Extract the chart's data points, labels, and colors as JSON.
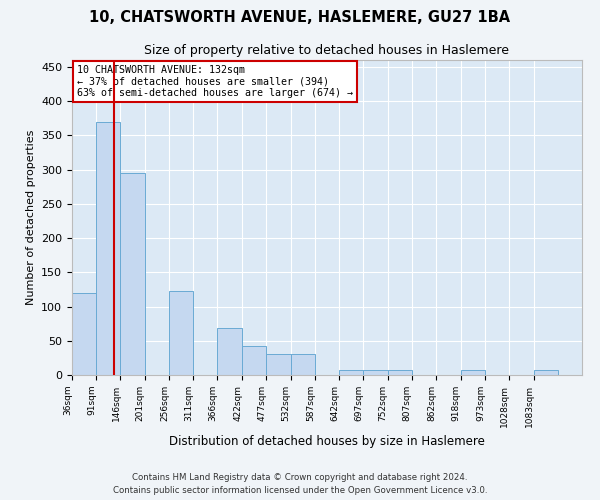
{
  "title": "10, CHATSWORTH AVENUE, HASLEMERE, GU27 1BA",
  "subtitle": "Size of property relative to detached houses in Haslemere",
  "xlabel": "Distribution of detached houses by size in Haslemere",
  "ylabel": "Number of detached properties",
  "bar_color": "#c5d8f0",
  "bar_edge_color": "#6aaad4",
  "background_color": "#dce9f5",
  "grid_color": "#ffffff",
  "annotation_box_color": "#ffffff",
  "annotation_box_edge": "#cc0000",
  "property_line_color": "#cc0000",
  "property_size": 132,
  "annotation_line1": "10 CHATSWORTH AVENUE: 132sqm",
  "annotation_line2": "← 37% of detached houses are smaller (394)",
  "annotation_line3": "63% of semi-detached houses are larger (674) →",
  "footer_line1": "Contains HM Land Registry data © Crown copyright and database right 2024.",
  "footer_line2": "Contains public sector information licensed under the Open Government Licence v3.0.",
  "bin_edges": [
    36,
    91,
    146,
    201,
    256,
    311,
    366,
    422,
    477,
    532,
    587,
    642,
    697,
    752,
    807,
    862,
    918,
    973,
    1028,
    1083,
    1138
  ],
  "bar_heights": [
    120,
    370,
    295,
    0,
    122,
    0,
    68,
    42,
    30,
    30,
    0,
    8,
    8,
    8,
    0,
    0,
    8,
    0,
    0,
    8
  ],
  "ylim": [
    0,
    460
  ],
  "yticks": [
    0,
    50,
    100,
    150,
    200,
    250,
    300,
    350,
    400,
    450
  ],
  "fig_width": 6.0,
  "fig_height": 5.0,
  "fig_dpi": 100
}
